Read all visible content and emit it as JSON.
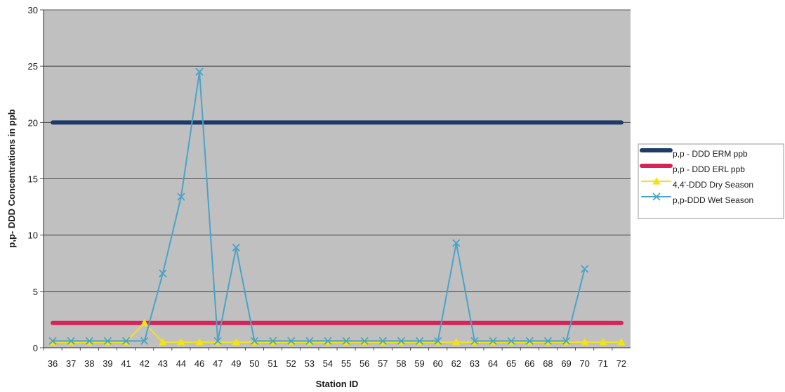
{
  "chart_data": {
    "type": "line",
    "title": "",
    "xlabel": "Station ID",
    "ylabel": "p,p- DDD Concentrations in ppb",
    "ylim": [
      0,
      30
    ],
    "yticks": [
      0,
      5,
      10,
      15,
      20,
      25,
      30
    ],
    "grid": "horizontal",
    "legend_position": "right",
    "plot_background": "#c0c0c0",
    "categories": [
      "36",
      "37",
      "38",
      "39",
      "41",
      "42",
      "43",
      "44",
      "46",
      "47",
      "49",
      "50",
      "51",
      "52",
      "53",
      "54",
      "55",
      "56",
      "57",
      "58",
      "59",
      "60",
      "62",
      "63",
      "64",
      "65",
      "66",
      "68",
      "69",
      "70",
      "71",
      "72"
    ],
    "series": [
      {
        "name": "p,p - DDD ERM ppb",
        "color": "#1f3a68",
        "marker": "none",
        "values": [
          20,
          20,
          20,
          20,
          20,
          20,
          20,
          20,
          20,
          20,
          20,
          20,
          20,
          20,
          20,
          20,
          20,
          20,
          20,
          20,
          20,
          20,
          20,
          20,
          20,
          20,
          20,
          20,
          20,
          20,
          20,
          20
        ]
      },
      {
        "name": "p,p - DDD ERL ppb",
        "color": "#d6245a",
        "marker": "none",
        "values": [
          2.2,
          2.2,
          2.2,
          2.2,
          2.2,
          2.2,
          2.2,
          2.2,
          2.2,
          2.2,
          2.2,
          2.2,
          2.2,
          2.2,
          2.2,
          2.2,
          2.2,
          2.2,
          2.2,
          2.2,
          2.2,
          2.2,
          2.2,
          2.2,
          2.2,
          2.2,
          2.2,
          2.2,
          2.2,
          2.2,
          2.2,
          2.2
        ]
      },
      {
        "name": "4,4'-DDD Dry Season",
        "color": "#f2e21a",
        "marker": "triangle",
        "values": [
          0.5,
          0.5,
          0.5,
          0.5,
          0.5,
          2.2,
          0.5,
          0.5,
          0.5,
          0.5,
          0.5,
          0.5,
          0.5,
          0.5,
          0.5,
          0.5,
          0.5,
          0.5,
          0.5,
          0.5,
          0.5,
          0.5,
          0.5,
          0.5,
          0.5,
          0.5,
          0.5,
          0.5,
          0.5,
          0.5,
          0.5,
          0.5
        ]
      },
      {
        "name": "p,p-DDD Wet Season",
        "color": "#4aa3c8",
        "marker": "x",
        "values": [
          0.6,
          0.6,
          0.6,
          0.6,
          0.6,
          0.6,
          6.6,
          13.4,
          24.5,
          0.6,
          8.9,
          0.6,
          0.6,
          0.6,
          0.6,
          0.6,
          0.6,
          0.6,
          0.6,
          0.6,
          0.6,
          0.6,
          9.3,
          0.6,
          0.6,
          0.6,
          0.6,
          0.6,
          0.6,
          7.0,
          null,
          null
        ]
      }
    ]
  }
}
